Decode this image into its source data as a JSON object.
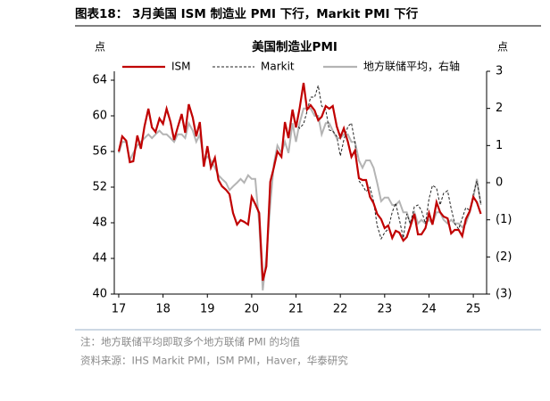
{
  "header": {
    "title": "图表18：  3月美国 ISM 制造业 PMI 下行，Markit PMI 下行"
  },
  "chart_data": {
    "type": "line",
    "title": "美国制造业PMI",
    "y_unit": "点",
    "y2_unit": "点",
    "x": [
      17,
      17.08,
      17.17,
      17.25,
      17.33,
      17.42,
      17.5,
      17.58,
      17.67,
      17.75,
      17.83,
      17.92,
      18,
      18.08,
      18.17,
      18.25,
      18.33,
      18.42,
      18.5,
      18.58,
      18.67,
      18.75,
      18.83,
      18.92,
      19,
      19.08,
      19.17,
      19.25,
      19.33,
      19.42,
      19.5,
      19.58,
      19.67,
      19.75,
      19.83,
      19.92,
      20,
      20.08,
      20.17,
      20.25,
      20.33,
      20.42,
      20.5,
      20.58,
      20.67,
      20.75,
      20.83,
      20.92,
      21,
      21.08,
      21.17,
      21.25,
      21.33,
      21.42,
      21.5,
      21.58,
      21.67,
      21.75,
      21.83,
      21.92,
      22,
      22.08,
      22.17,
      22.25,
      22.33,
      22.42,
      22.5,
      22.58,
      22.67,
      22.75,
      22.83,
      22.92,
      23,
      23.08,
      23.17,
      23.25,
      23.33,
      23.42,
      23.5,
      23.58,
      23.67,
      23.75,
      23.83,
      23.92,
      24,
      24.08,
      24.17,
      24.25,
      24.33,
      24.42,
      24.5,
      24.58,
      24.67,
      24.75,
      24.83,
      24.92,
      25,
      25.08,
      25.17
    ],
    "series": [
      {
        "name": "ISM",
        "color": "#c00000",
        "dash": false,
        "values": [
          56.0,
          57.7,
          57.2,
          54.8,
          54.9,
          57.8,
          56.3,
          58.8,
          60.8,
          58.7,
          58.2,
          59.7,
          59.1,
          60.8,
          59.3,
          57.3,
          58.7,
          60.2,
          58.1,
          61.3,
          59.8,
          57.7,
          59.3,
          54.3,
          56.6,
          54.2,
          55.3,
          52.8,
          52.1,
          51.7,
          51.2,
          49.1,
          47.8,
          48.3,
          48.1,
          47.8,
          50.9,
          50.1,
          49.1,
          41.5,
          43.1,
          52.6,
          54.2,
          56.0,
          55.4,
          59.3,
          57.5,
          60.7,
          58.7,
          60.8,
          63.7,
          60.7,
          61.2,
          60.6,
          59.5,
          59.9,
          61.1,
          60.8,
          61.1,
          58.8,
          57.6,
          58.6,
          57.1,
          55.4,
          56.1,
          53.0,
          52.8,
          52.8,
          50.9,
          50.2,
          49.0,
          48.4,
          47.4,
          47.7,
          46.3,
          47.1,
          46.9,
          46.0,
          46.4,
          47.6,
          49.0,
          46.7,
          46.7,
          47.4,
          49.1,
          47.8,
          50.3,
          49.2,
          48.7,
          48.5,
          46.8,
          47.2,
          47.2,
          46.5,
          48.4,
          49.3,
          50.9,
          50.3,
          49.0
        ]
      },
      {
        "name": "Markit",
        "color": "#222222",
        "dash": true,
        "values": [
          null,
          null,
          null,
          null,
          null,
          null,
          null,
          null,
          null,
          null,
          null,
          null,
          null,
          null,
          null,
          null,
          null,
          null,
          null,
          null,
          null,
          null,
          null,
          null,
          null,
          null,
          null,
          null,
          null,
          null,
          null,
          null,
          null,
          null,
          null,
          null,
          null,
          null,
          null,
          null,
          null,
          null,
          null,
          null,
          null,
          null,
          null,
          null,
          59.2,
          58.6,
          59.1,
          60.5,
          62.1,
          62.1,
          63.4,
          61.1,
          60.7,
          58.4,
          58.3,
          57.7,
          55.5,
          57.3,
          58.8,
          59.2,
          57.0,
          52.7,
          52.2,
          51.5,
          52.0,
          50.4,
          47.7,
          46.2,
          46.9,
          47.3,
          49.2,
          50.2,
          48.4,
          46.3,
          49.0,
          47.9,
          49.8,
          50.0,
          49.4,
          47.9,
          50.7,
          52.2,
          51.9,
          50.0,
          51.3,
          51.6,
          49.6,
          47.9,
          47.3,
          48.5,
          49.7,
          49.4,
          51.2,
          52.7,
          50.2
        ]
      },
      {
        "name": "地方联储平均，右轴",
        "color": "#b4b4b4",
        "dash": false,
        "axis": "y2",
        "values": [
          0.8,
          1.1,
          1.1,
          0.6,
          0.8,
          1.0,
          1.1,
          1.2,
          1.3,
          1.2,
          1.3,
          1.4,
          1.3,
          1.3,
          1.2,
          1.1,
          1.3,
          1.3,
          1.2,
          1.6,
          1.4,
          1.1,
          1.3,
          0.6,
          0.7,
          0.6,
          0.4,
          0.2,
          0.1,
          0.0,
          -0.2,
          -0.1,
          0.0,
          0.1,
          0.0,
          0.2,
          0.1,
          0.1,
          -1.1,
          -2.9,
          -2.0,
          -0.6,
          0.5,
          1.0,
          0.8,
          1.1,
          0.8,
          1.6,
          1.1,
          1.6,
          2.0,
          2.0,
          2.0,
          1.8,
          1.8,
          1.3,
          1.6,
          1.6,
          1.4,
          1.2,
          1.2,
          1.3,
          1.3,
          1.1,
          1.1,
          0.6,
          0.4,
          0.6,
          0.6,
          0.4,
          0.0,
          -0.5,
          -0.4,
          -0.4,
          -0.6,
          -0.6,
          -0.5,
          -0.8,
          -0.8,
          -1.1,
          -0.8,
          -1.1,
          -1.0,
          -1.1,
          -1.0,
          -1.1,
          -0.8,
          -0.8,
          -1.0,
          -1.1,
          -1.0,
          -1.1,
          -1.1,
          -1.2,
          -1.1,
          -0.8,
          -0.4,
          0.1,
          -0.6
        ]
      }
    ],
    "xlim": [
      16.9,
      25.3
    ],
    "xticks": [
      17,
      18,
      19,
      20,
      21,
      22,
      23,
      24,
      25
    ],
    "ylim": [
      40,
      65
    ],
    "yticks": [
      40,
      44,
      48,
      52,
      56,
      60,
      64
    ],
    "y2lim": [
      -3,
      3
    ],
    "y2ticks": [
      {
        "value": -3,
        "label": "(3)"
      },
      {
        "value": -2,
        "label": "(2)"
      },
      {
        "value": -1,
        "label": "(1)"
      },
      0,
      1,
      2,
      3
    ],
    "grid": false,
    "legend": "top"
  },
  "notes": [
    "注：地方联储平均即取多个地方联储 PMI 的均值",
    "资料来源：IHS Markit PMI，ISM PMI，Haver，华泰研究"
  ]
}
